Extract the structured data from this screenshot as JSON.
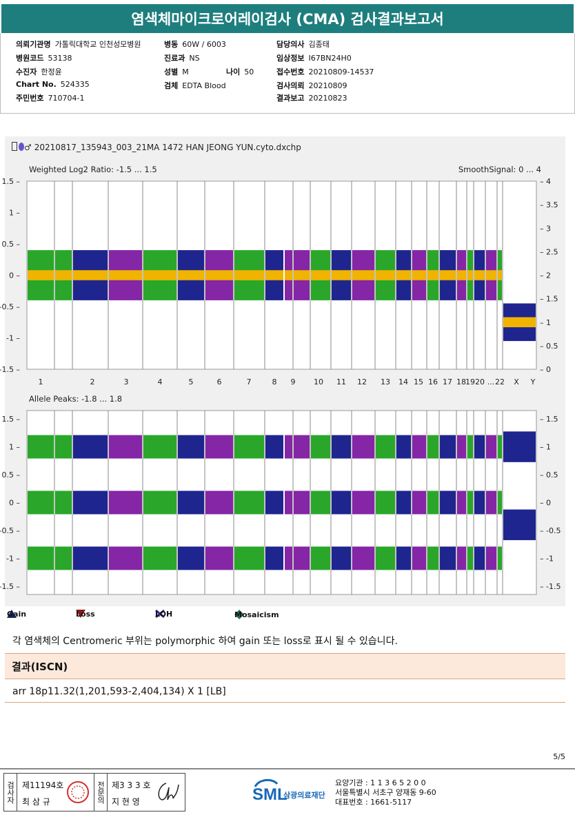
{
  "report_title": "염색체마이크로어레이검사 (CMA) 검사결과보고서",
  "header": {
    "col1": [
      {
        "label": "의뢰기관명",
        "value": "가톨릭대학교 인천성모병원"
      },
      {
        "label": "병원코드",
        "value": "53138"
      },
      {
        "label": "수진자",
        "value": "한정윤"
      },
      {
        "label": "Chart No.",
        "value": "524335"
      },
      {
        "label": "주민번호",
        "value": "710704-1"
      }
    ],
    "col2": [
      {
        "label": "병동",
        "value": "60W / 6003"
      },
      {
        "label": "진료과",
        "value": "NS"
      },
      {
        "label": "성별",
        "value": "M"
      },
      {
        "label": "검체",
        "value": "EDTA Blood"
      }
    ],
    "age": {
      "label": "나이",
      "value": "50"
    },
    "col3": [
      {
        "label": "담당의사",
        "value": "김종태"
      },
      {
        "label": "임상정보",
        "value": "I67BN24H0"
      },
      {
        "label": "접수번호",
        "value": "20210809-14537"
      },
      {
        "label": "검사의뢰",
        "value": "20210809"
      },
      {
        "label": "결과보고",
        "value": "20210823"
      }
    ]
  },
  "file_title": "20210817_135943_003_21MA 1472 HAN JEONG YUN.cyto.dxchp",
  "top_plot": {
    "left_label": "Weighted Log2 Ratio: -1.5 ... 1.5",
    "right_label": "SmoothSignal: 0 ... 4",
    "left_ticks": [
      "1.5",
      "1",
      "0.5",
      "0",
      "-0.5",
      "-1",
      "-1.5"
    ],
    "right_ticks": [
      "4",
      "3.5",
      "3",
      "2.5",
      "2",
      "1.5",
      "1",
      "0.5",
      "0"
    ]
  },
  "bottom_plot": {
    "left_label": "Allele Peaks: -1.8 ... 1.8",
    "left_ticks": [
      "1.5",
      "1",
      "0.5",
      "0",
      "-0.5",
      "-1",
      "-1.5"
    ],
    "right_ticks": [
      "1.5",
      "1",
      "0.5",
      "0",
      "-0.5",
      "-1",
      "-1.5"
    ]
  },
  "chrom_labels": [
    "1",
    "2",
    "3",
    "4",
    "5",
    "6",
    "7",
    "8",
    "9",
    "10",
    "11",
    "12",
    "13",
    "14",
    "15",
    "16",
    "17",
    "18",
    "19",
    "20",
    "...",
    "22",
    "X",
    "Y"
  ],
  "colors": {
    "green": "#18a018",
    "navy": "#0c1285",
    "purple": "#7a149e",
    "smooth": "#f0b400",
    "teal": "#1e7e7e"
  },
  "legend": [
    {
      "icon": "gain-icon",
      "label": "Gain"
    },
    {
      "icon": "loss-icon",
      "label": "Loss"
    },
    {
      "icon": "loh-icon",
      "label": "LOH"
    },
    {
      "icon": "mosaicism-icon",
      "label": "Mosaicism"
    }
  ],
  "note": "각 염색체의 Centromeric 부위는 polymorphic 하여 gain 또는 loss로 표시 될 수 있습니다.",
  "result": {
    "heading": "결과(ISCN)",
    "value": "arr 18p11.32(1,201,593-2,404,134) X 1 [LB]"
  },
  "page_number": "5/5",
  "footer": {
    "box_label_1": "검사자",
    "reg1": "제11194호",
    "name1": "최 삼 규",
    "box_label_2": "전문의",
    "reg2": "제3 3 3 호",
    "name2": "지 현 영",
    "org_logo": "SML",
    "org_name": "삼광의료재단",
    "info": [
      "요양기관 : 1 1 3 6 5 2 0 0",
      "서울특별시 서초구 양재동 9-60",
      "대표번호 : 1661-5117"
    ]
  }
}
